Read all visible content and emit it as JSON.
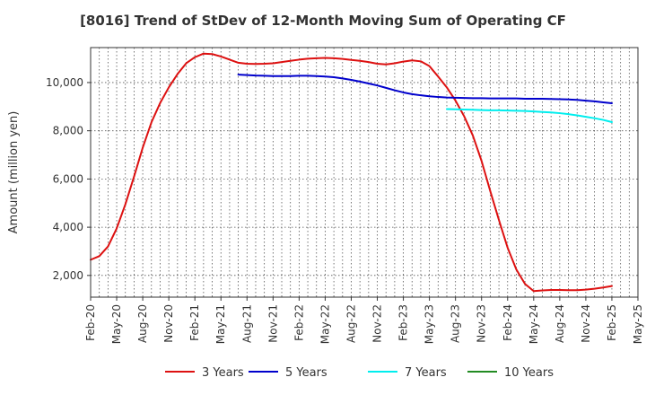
{
  "chart_data": {
    "type": "line",
    "title": "[8016]  Trend of StDev of 12-Month Moving Sum of Operating CF",
    "xlabel": "",
    "ylabel": "Amount (million yen)",
    "ylim": [
      1100,
      11450
    ],
    "yticks": [
      2000,
      4000,
      6000,
      8000,
      10000
    ],
    "ytick_labels": [
      "2,000",
      "4,000",
      "6,000",
      "8,000",
      "10,000"
    ],
    "xlim": [
      "2020-02",
      "2025-05"
    ],
    "xticks": [
      "2020-02",
      "2020-05",
      "2020-08",
      "2020-11",
      "2021-02",
      "2021-05",
      "2021-08",
      "2021-11",
      "2022-02",
      "2022-05",
      "2022-08",
      "2022-11",
      "2023-02",
      "2023-05",
      "2023-08",
      "2023-11",
      "2024-02",
      "2024-05",
      "2024-08",
      "2024-11",
      "2025-02",
      "2025-05"
    ],
    "xtick_labels": [
      "Feb-20",
      "May-20",
      "Aug-20",
      "Nov-20",
      "Feb-21",
      "May-21",
      "Aug-21",
      "Nov-21",
      "Feb-22",
      "May-22",
      "Aug-22",
      "Nov-22",
      "Feb-23",
      "May-23",
      "Aug-23",
      "Nov-23",
      "Feb-24",
      "May-24",
      "Aug-24",
      "Nov-24",
      "Feb-25",
      "May-25"
    ],
    "grid": true,
    "legend_position": "bottom",
    "series": [
      {
        "name": "3 Years",
        "color": "#dd1111",
        "x": [
          "2020-02",
          "2020-03",
          "2020-04",
          "2020-05",
          "2020-06",
          "2020-07",
          "2020-08",
          "2020-09",
          "2020-10",
          "2020-11",
          "2020-12",
          "2021-01",
          "2021-02",
          "2021-03",
          "2021-04",
          "2021-05",
          "2021-06",
          "2021-07",
          "2021-08",
          "2021-09",
          "2021-10",
          "2021-11",
          "2021-12",
          "2022-01",
          "2022-02",
          "2022-03",
          "2022-04",
          "2022-05",
          "2022-06",
          "2022-07",
          "2022-08",
          "2022-09",
          "2022-10",
          "2022-11",
          "2022-12",
          "2023-01",
          "2023-02",
          "2023-03",
          "2023-04",
          "2023-05",
          "2023-06",
          "2023-07",
          "2023-08",
          "2023-09",
          "2023-10",
          "2023-11",
          "2023-12",
          "2024-01",
          "2024-02",
          "2024-03",
          "2024-04",
          "2024-05",
          "2024-06",
          "2024-07",
          "2024-08",
          "2024-09",
          "2024-10",
          "2024-11",
          "2024-12",
          "2025-01",
          "2025-02"
        ],
        "values": [
          2650,
          2800,
          3200,
          3950,
          4950,
          6100,
          7300,
          8350,
          9150,
          9800,
          10350,
          10800,
          11050,
          11200,
          11180,
          11080,
          10950,
          10820,
          10780,
          10770,
          10780,
          10800,
          10850,
          10900,
          10950,
          10990,
          11010,
          11020,
          11010,
          10980,
          10940,
          10900,
          10850,
          10780,
          10750,
          10800,
          10870,
          10920,
          10880,
          10680,
          10250,
          9800,
          9250,
          8600,
          7800,
          6750,
          5500,
          4300,
          3150,
          2250,
          1650,
          1350,
          1380,
          1400,
          1400,
          1390,
          1390,
          1410,
          1450,
          1500,
          1560
        ]
      },
      {
        "name": "5 Years",
        "color": "#0000cc",
        "x": [
          "2021-07",
          "2021-08",
          "2021-09",
          "2021-10",
          "2021-11",
          "2021-12",
          "2022-01",
          "2022-02",
          "2022-03",
          "2022-04",
          "2022-05",
          "2022-06",
          "2022-07",
          "2022-08",
          "2022-09",
          "2022-10",
          "2022-11",
          "2022-12",
          "2023-01",
          "2023-02",
          "2023-03",
          "2023-04",
          "2023-05",
          "2023-06",
          "2023-07",
          "2023-08",
          "2023-09",
          "2023-10",
          "2023-11",
          "2023-12",
          "2024-01",
          "2024-02",
          "2024-03",
          "2024-04",
          "2024-05",
          "2024-06",
          "2024-07",
          "2024-08",
          "2024-09",
          "2024-10",
          "2024-11",
          "2024-12",
          "2025-01",
          "2025-02"
        ],
        "values": [
          10330,
          10310,
          10290,
          10280,
          10270,
          10270,
          10270,
          10280,
          10280,
          10270,
          10250,
          10220,
          10170,
          10110,
          10040,
          9960,
          9880,
          9780,
          9680,
          9590,
          9520,
          9470,
          9430,
          9400,
          9380,
          9370,
          9360,
          9350,
          9350,
          9340,
          9340,
          9340,
          9340,
          9330,
          9330,
          9330,
          9320,
          9310,
          9300,
          9280,
          9250,
          9220,
          9180,
          9140
        ]
      },
      {
        "name": "7 Years",
        "color": "#00eeee",
        "x": [
          "2023-07",
          "2023-08",
          "2023-09",
          "2023-10",
          "2023-11",
          "2023-12",
          "2024-01",
          "2024-02",
          "2024-03",
          "2024-04",
          "2024-05",
          "2024-06",
          "2024-07",
          "2024-08",
          "2024-09",
          "2024-10",
          "2024-11",
          "2024-12",
          "2025-01",
          "2025-02"
        ],
        "values": [
          8900,
          8890,
          8880,
          8870,
          8860,
          8850,
          8850,
          8840,
          8830,
          8820,
          8800,
          8780,
          8760,
          8730,
          8690,
          8640,
          8580,
          8520,
          8450,
          8360
        ]
      },
      {
        "name": "10 Years",
        "color": "#228b22",
        "x": [],
        "values": []
      }
    ]
  }
}
